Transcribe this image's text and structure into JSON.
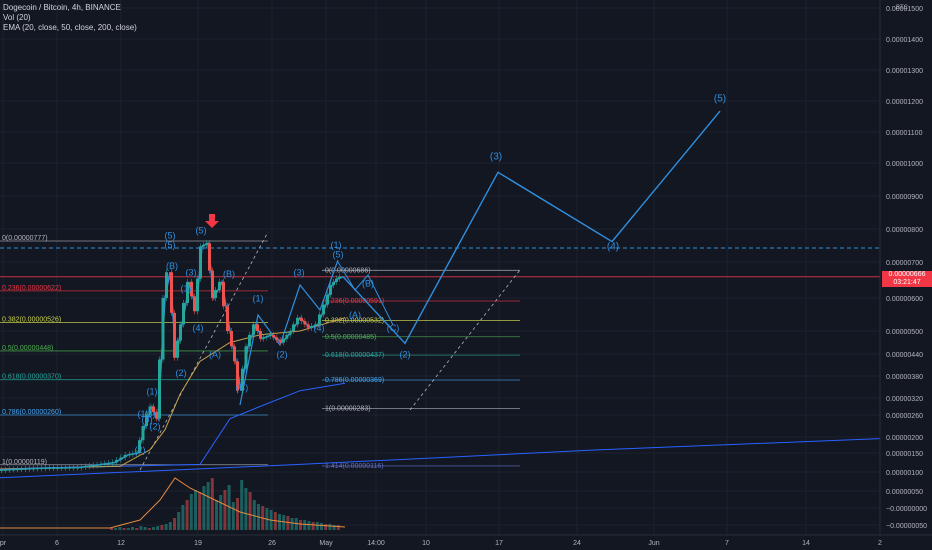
{
  "legend": {
    "symbol_line": "Dogecoin / Bitcoin, 4h, BINANCE",
    "vol_line": "Vol (20)",
    "ema_line": "EMA (20, close, 50, close, 200, close)"
  },
  "currency_badge": "BTC",
  "current_price": {
    "value": "0.00000666",
    "countdown": "03:21:47"
  },
  "colors": {
    "background": "#131722",
    "wave": "#2f8fdf",
    "up_candle": "#26a69a",
    "down_candle": "#ef5350",
    "price_line": "#f23645",
    "ema_short": "#c8a14a",
    "ema_long": "#2962ff",
    "arrow": "#f23645"
  },
  "chart_data": {
    "type": "line",
    "title": "Dogecoin / Bitcoin, 4h, BINANCE",
    "y_ticks": [
      "0.00001500",
      "0.00001400",
      "0.00001300",
      "0.00001200",
      "0.00001100",
      "0.00001000",
      "0.00000900",
      "0.00000800",
      "0.00000700",
      "0.00000600",
      "0.00000500",
      "0.00000440",
      "0.00000380",
      "0.00000320",
      "0.00000260",
      "0.00000200",
      "0.00000150",
      "0.00000100",
      "0.00000050",
      "−0.00000000",
      "−0.00000050"
    ],
    "x_ticks": [
      "pr",
      "6",
      "12",
      "19",
      "26",
      "May",
      "14:00",
      "10",
      "17",
      "24",
      "Jun",
      "7",
      "14",
      "2"
    ],
    "price_series": [
      {
        "x": 0,
        "y": 1.05e-06
      },
      {
        "x": 40,
        "y": 1.1e-06
      },
      {
        "x": 80,
        "y": 1.12e-06
      },
      {
        "x": 115,
        "y": 1.25e-06
      },
      {
        "x": 128,
        "y": 1.45e-06
      },
      {
        "x": 138,
        "y": 1.5e-06
      },
      {
        "x": 145,
        "y": 2.3e-06
      },
      {
        "x": 152,
        "y": 2.9e-06
      },
      {
        "x": 158,
        "y": 2.5e-06
      },
      {
        "x": 165,
        "y": 6e-06
      },
      {
        "x": 170,
        "y": 6.8e-06
      },
      {
        "x": 176,
        "y": 4.3e-06
      },
      {
        "x": 182,
        "y": 5.2e-06
      },
      {
        "x": 190,
        "y": 6.5e-06
      },
      {
        "x": 196,
        "y": 5.6e-06
      },
      {
        "x": 202,
        "y": 7.6e-06
      },
      {
        "x": 208,
        "y": 7.7e-06
      },
      {
        "x": 214,
        "y": 6e-06
      },
      {
        "x": 222,
        "y": 6.5e-06
      },
      {
        "x": 230,
        "y": 5e-06
      },
      {
        "x": 236,
        "y": 4.2e-06
      },
      {
        "x": 241,
        "y": 3.4e-06
      },
      {
        "x": 248,
        "y": 4.6e-06
      },
      {
        "x": 256,
        "y": 5.2e-06
      },
      {
        "x": 262,
        "y": 4.8e-06
      },
      {
        "x": 272,
        "y": 4.9e-06
      },
      {
        "x": 282,
        "y": 4.7e-06
      },
      {
        "x": 292,
        "y": 5e-06
      },
      {
        "x": 300,
        "y": 5.4e-06
      },
      {
        "x": 310,
        "y": 5.1e-06
      },
      {
        "x": 318,
        "y": 5.2e-06
      },
      {
        "x": 326,
        "y": 5.8e-06
      },
      {
        "x": 332,
        "y": 6.4e-06
      },
      {
        "x": 338,
        "y": 6.6e-06
      },
      {
        "x": 343,
        "y": 6.66e-06
      }
    ],
    "ema_short": [
      {
        "x": 0,
        "y": 1.08e-06
      },
      {
        "x": 120,
        "y": 1.15e-06
      },
      {
        "x": 150,
        "y": 1.6e-06
      },
      {
        "x": 165,
        "y": 2.2e-06
      },
      {
        "x": 180,
        "y": 3.3e-06
      },
      {
        "x": 200,
        "y": 4.2e-06
      },
      {
        "x": 230,
        "y": 4.7e-06
      },
      {
        "x": 260,
        "y": 4.9e-06
      },
      {
        "x": 300,
        "y": 5e-06
      },
      {
        "x": 345,
        "y": 5.4e-06
      }
    ],
    "ema_long": [
      {
        "x": 0,
        "y": 1.08e-06
      },
      {
        "x": 200,
        "y": 1.2e-06
      },
      {
        "x": 230,
        "y": 2.5e-06
      },
      {
        "x": 260,
        "y": 2.9e-06
      },
      {
        "x": 300,
        "y": 3.4e-06
      },
      {
        "x": 345,
        "y": 3.6e-06
      }
    ],
    "ema_200": [
      {
        "x": 0,
        "y": 8.5e-07
      },
      {
        "x": 300,
        "y": 1.2e-06
      },
      {
        "x": 600,
        "y": 1.6e-06
      },
      {
        "x": 880,
        "y": 1.95e-06
      }
    ],
    "projection": [
      {
        "x": 343,
        "y": 6.66e-06
      },
      {
        "x": 405,
        "y": 4.68e-06
      },
      {
        "x": 498,
        "y": 9.9e-06
      },
      {
        "x": 612,
        "y": 7.75e-06
      },
      {
        "x": 720,
        "y": 1.18e-05
      }
    ],
    "fib_left": [
      {
        "label": "0(0.00000777)",
        "color": "#b2b5be",
        "y": 7.77e-06
      },
      {
        "label": "0.236(0.00000622)",
        "color": "#f23645",
        "y": 6.22e-06
      },
      {
        "label": "0.382(0.00000526)",
        "color": "#c9d14a",
        "y": 5.26e-06
      },
      {
        "label": "0.5(0.00000448)",
        "color": "#4caf50",
        "y": 4.48e-06
      },
      {
        "label": "0.618(0.00000370)",
        "color": "#26a69a",
        "y": 3.7e-06
      },
      {
        "label": "0.786(0.00000260)",
        "color": "#42a5f5",
        "y": 2.6e-06
      },
      {
        "label": "1(0.00000119)",
        "color": "#b2b5be",
        "y": 1.19e-06
      }
    ],
    "fib_right": [
      {
        "label": "0(0.00000686)",
        "color": "#b2b5be",
        "y": 6.86e-06
      },
      {
        "label": "0.236(0.00000591)",
        "color": "#f23645",
        "y": 5.91e-06
      },
      {
        "label": "0.382(0.00000532)",
        "color": "#c9d14a",
        "y": 5.32e-06
      },
      {
        "label": "0.5(0.00000485)",
        "color": "#4caf50",
        "y": 4.85e-06
      },
      {
        "label": "0.618(0.00000437)",
        "color": "#26a69a",
        "y": 4.37e-06
      },
      {
        "label": "0.786(0.00000369)",
        "color": "#42a5f5",
        "y": 3.69e-06
      },
      {
        "label": "1(0.00000283)",
        "color": "#b2b5be",
        "y": 2.83e-06
      },
      {
        "label": "1.414(0.00000116)",
        "color": "#5c6bc0",
        "y": 1.16e-06
      }
    ],
    "wave_labels": [
      {
        "text": "(5)",
        "x": 720,
        "y": 1.21e-05,
        "big": true
      },
      {
        "text": "(3)",
        "x": 496,
        "y": 1.03e-05,
        "big": true
      },
      {
        "text": "(4)",
        "x": 613,
        "y": 7.5e-06,
        "big": true
      },
      {
        "text": "(5)",
        "x": 201,
        "y": 8e-06,
        "big": false
      },
      {
        "text": "(5)",
        "x": 170,
        "y": 7.85e-06,
        "big": false
      },
      {
        "text": "(5)",
        "x": 170,
        "y": 7.55e-06,
        "big": false
      },
      {
        "text": "(B)",
        "x": 172,
        "y": 6.9e-06,
        "big": false
      },
      {
        "text": "(3)",
        "x": 191,
        "y": 6.7e-06,
        "big": false
      },
      {
        "text": "(B)",
        "x": 229,
        "y": 6.65e-06,
        "big": false
      },
      {
        "text": "(1)",
        "x": 186,
        "y": 6.2e-06,
        "big": false
      },
      {
        "text": "(1)",
        "x": 258,
        "y": 5.9e-06,
        "big": false
      },
      {
        "text": "(3)",
        "x": 299,
        "y": 6.7e-06,
        "big": false
      },
      {
        "text": "(1)",
        "x": 336,
        "y": 7.55e-06,
        "big": false
      },
      {
        "text": "(5)",
        "x": 338,
        "y": 7.25e-06,
        "big": false
      },
      {
        "text": "(B)",
        "x": 368,
        "y": 6.35e-06,
        "big": false
      },
      {
        "text": "(A)",
        "x": 355,
        "y": 5.4e-06,
        "big": false
      },
      {
        "text": "(C)",
        "x": 393,
        "y": 5e-06,
        "big": false
      },
      {
        "text": "(2)",
        "x": 405,
        "y": 4.3e-06,
        "big": false
      },
      {
        "text": "(4)",
        "x": 319,
        "y": 5e-06,
        "big": false
      },
      {
        "text": "(2)",
        "x": 282,
        "y": 4.3e-06,
        "big": false
      },
      {
        "text": "(A)",
        "x": 215,
        "y": 4.3e-06,
        "big": false
      },
      {
        "text": "(4)",
        "x": 198,
        "y": 5e-06,
        "big": false
      },
      {
        "text": "(C)",
        "x": 242,
        "y": 3.4e-06,
        "big": false
      },
      {
        "text": "(2)",
        "x": 181,
        "y": 3.8e-06,
        "big": false
      },
      {
        "text": "(1)",
        "x": 152,
        "y": 3.3e-06,
        "big": false
      },
      {
        "text": "(3)",
        "x": 150,
        "y": 2.55e-06,
        "big": false
      },
      {
        "text": "(5)",
        "x": 147,
        "y": 2.4e-06,
        "big": false
      },
      {
        "text": "(1)",
        "x": 143,
        "y": 2.55e-06,
        "big": false
      },
      {
        "text": "(2)",
        "x": 140,
        "y": 1.5e-06,
        "big": false
      },
      {
        "text": "(2)",
        "x": 155,
        "y": 2.2e-06,
        "big": false
      }
    ]
  }
}
